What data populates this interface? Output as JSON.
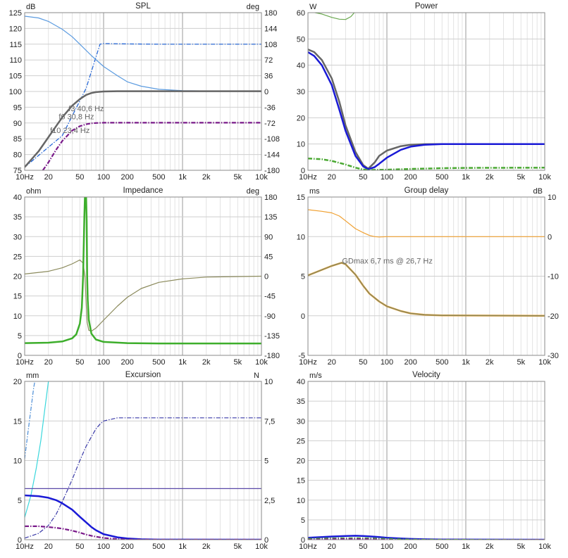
{
  "chart_data": [
    {
      "id": "spl",
      "type": "line",
      "title": "SPL",
      "ylabel": "dB",
      "y2label": "deg",
      "xscale": "log",
      "xlim": [
        10,
        10000
      ],
      "ylim": [
        75,
        125
      ],
      "y2lim": [
        -180,
        180
      ],
      "xticks": [
        10,
        20,
        50,
        100,
        200,
        500,
        1000,
        2000,
        5000,
        10000
      ],
      "xticklabels": [
        "10Hz",
        "20",
        "50",
        "100",
        "200",
        "500",
        "1k",
        "2k",
        "5k",
        "10k"
      ],
      "yticks": [
        75,
        80,
        85,
        90,
        95,
        100,
        105,
        110,
        115,
        120,
        125
      ],
      "y2ticks": [
        -180,
        -144,
        -108,
        -72,
        -36,
        0,
        36,
        72,
        108,
        144,
        180
      ],
      "series": [
        {
          "color": "#1a5fd6",
          "style": "dashdot",
          "axis": "y",
          "x": [
            10,
            30,
            60,
            90,
            100,
            200,
            500,
            1000,
            10000
          ],
          "y": [
            76,
            86,
            101,
            115,
            115.2,
            115.1,
            115,
            115,
            115
          ]
        },
        {
          "color": "#5b9be0",
          "style": "solid",
          "axis": "y2",
          "x": [
            10,
            15,
            20,
            30,
            40,
            50,
            70,
            100,
            150,
            200,
            300,
            500,
            1000,
            10000
          ],
          "y": [
            172,
            168,
            160,
            142,
            125,
            108,
            82,
            57,
            36,
            22,
            12,
            5,
            2,
            0
          ]
        },
        {
          "color": "#666666",
          "style": "solid",
          "width": 2.5,
          "axis": "y",
          "x": [
            10,
            15,
            20,
            25,
            30,
            40,
            50,
            60,
            70,
            80,
            100,
            150,
            200,
            500,
            10000
          ],
          "y": [
            76,
            81,
            85.5,
            89,
            91.8,
            95.5,
            97.6,
            98.9,
            99.5,
            99.8,
            100,
            100.1,
            100.1,
            100.1,
            100.1
          ]
        },
        {
          "color": "#7a1a8a",
          "style": "dashdot",
          "width": 2.2,
          "axis": "y",
          "x": [
            17,
            20,
            25,
            30,
            40,
            50,
            60,
            70,
            80,
            100,
            150,
            200,
            500,
            10000
          ],
          "y": [
            75,
            77.5,
            81.5,
            84.3,
            87.6,
            89,
            89.6,
            89.9,
            90,
            90.1,
            90.1,
            90.1,
            90.1,
            90.1
          ]
        }
      ],
      "annotations": [
        {
          "text": "f3 40,6 Hz",
          "x": 36,
          "y": 93.8
        },
        {
          "text": "f6 30,8 Hz",
          "x": 27,
          "y": 91.2
        },
        {
          "text": "f10 23,4 Hz",
          "x": 21,
          "y": 86.8
        }
      ]
    },
    {
      "id": "power",
      "type": "line",
      "title": "Power",
      "ylabel": "W",
      "xscale": "log",
      "xlim": [
        10,
        10000
      ],
      "ylim": [
        0,
        60
      ],
      "xticks": [
        10,
        20,
        50,
        100,
        200,
        500,
        1000,
        2000,
        5000,
        10000
      ],
      "xticklabels": [
        "10Hz",
        "20",
        "50",
        "100",
        "200",
        "500",
        "1k",
        "2k",
        "5k",
        "10k"
      ],
      "yticks": [
        0,
        10,
        20,
        30,
        40,
        50,
        60
      ],
      "series": [
        {
          "color": "#6aa84f",
          "style": "solid",
          "axis": "y",
          "x": [
            10,
            15,
            20,
            25,
            30,
            35,
            40
          ],
          "y": [
            60.5,
            59.5,
            58.2,
            57.5,
            57.4,
            58.5,
            60.5
          ]
        },
        {
          "color": "#666666",
          "style": "solid",
          "width": 2.5,
          "axis": "y",
          "x": [
            10,
            12,
            15,
            20,
            25,
            30,
            40,
            50,
            58,
            70,
            80,
            100,
            150,
            200,
            300,
            500,
            1000,
            10000
          ],
          "y": [
            46,
            45,
            42,
            35,
            26,
            17,
            7,
            2,
            0.6,
            3,
            5.5,
            7.5,
            9.2,
            9.7,
            9.95,
            10,
            10,
            10
          ]
        },
        {
          "color": "#1a1ad6",
          "style": "solid",
          "width": 2.5,
          "axis": "y",
          "x": [
            10,
            12,
            15,
            20,
            25,
            30,
            40,
            50,
            58,
            70,
            80,
            100,
            150,
            200,
            300,
            500,
            1000,
            10000
          ],
          "y": [
            45,
            43.5,
            40,
            32.5,
            23,
            15,
            5.5,
            1.5,
            0.4,
            1.2,
            2.5,
            4.8,
            7.8,
            9,
            9.7,
            10,
            10,
            10
          ]
        },
        {
          "color": "#4aa832",
          "style": "dashdot",
          "width": 2.5,
          "axis": "y",
          "x": [
            10,
            15,
            20,
            30,
            40,
            50,
            60,
            100,
            200,
            500,
            1000,
            10000
          ],
          "y": [
            4.5,
            4.2,
            3.6,
            2.2,
            1,
            0.3,
            0.1,
            0.25,
            0.5,
            0.8,
            0.9,
            1
          ]
        }
      ]
    },
    {
      "id": "impedance",
      "type": "line",
      "title": "Impedance",
      "ylabel": "ohm",
      "y2label": "deg",
      "xscale": "log",
      "xlim": [
        10,
        10000
      ],
      "ylim": [
        0,
        40
      ],
      "y2lim": [
        -180,
        180
      ],
      "xticks": [
        10,
        20,
        50,
        100,
        200,
        500,
        1000,
        2000,
        5000,
        10000
      ],
      "xticklabels": [
        "10Hz",
        "20",
        "50",
        "100",
        "200",
        "500",
        "1k",
        "2k",
        "5k",
        "10k"
      ],
      "yticks": [
        0,
        5,
        10,
        15,
        20,
        25,
        30,
        35,
        40
      ],
      "y2ticks": [
        -180,
        -135,
        -90,
        -45,
        0,
        45,
        90,
        135,
        180
      ],
      "series": [
        {
          "color": "#8b8a5c",
          "style": "solid",
          "axis": "y2",
          "x": [
            10,
            20,
            30,
            40,
            50,
            55,
            58,
            60,
            62,
            65,
            70,
            80,
            100,
            150,
            200,
            300,
            500,
            1000,
            2000,
            10000
          ],
          "y": [
            5,
            11,
            19,
            28,
            37,
            30,
            0,
            -60,
            -105,
            -123,
            -125,
            -118,
            -100,
            -68,
            -48,
            -28,
            -14,
            -6,
            -2,
            0
          ]
        },
        {
          "color": "#3dae2b",
          "style": "solid",
          "width": 2.5,
          "axis": "y",
          "x": [
            10,
            20,
            30,
            40,
            45,
            50,
            53,
            55,
            57,
            58,
            59,
            60,
            61,
            62,
            63,
            65,
            70,
            80,
            100,
            200,
            500,
            10000
          ],
          "y": [
            3.1,
            3.2,
            3.5,
            4.3,
            5.3,
            8,
            12,
            20,
            35,
            40,
            40,
            40,
            34,
            20,
            14,
            9,
            5.5,
            4,
            3.4,
            3.1,
            3,
            3
          ]
        }
      ]
    },
    {
      "id": "group_delay",
      "type": "line",
      "title": "Group delay",
      "ylabel": "ms",
      "y2label": "dB",
      "xscale": "log",
      "xlim": [
        10,
        10000
      ],
      "ylim": [
        -5,
        15
      ],
      "y2lim": [
        -30,
        10
      ],
      "xticks": [
        10,
        20,
        50,
        100,
        200,
        500,
        1000,
        2000,
        5000,
        10000
      ],
      "xticklabels": [
        "10Hz",
        "20",
        "50",
        "100",
        "200",
        "500",
        "1k",
        "2k",
        "5k",
        "10k"
      ],
      "yticks": [
        -5,
        0,
        5,
        10,
        15
      ],
      "y2ticks": [
        -30,
        -20,
        -10,
        0,
        10
      ],
      "series": [
        {
          "color": "#f0a030",
          "style": "solid",
          "axis": "y",
          "x": [
            10,
            15,
            20,
            25,
            30,
            40,
            50,
            60,
            70,
            80,
            100,
            200,
            10000
          ],
          "y": [
            13.4,
            13.2,
            13,
            12.6,
            12,
            11,
            10.5,
            10.15,
            10,
            9.95,
            10,
            10,
            10
          ]
        },
        {
          "color": "#f0a030",
          "style": "solid",
          "width": 2.5,
          "axis": "y",
          "x": [
            10,
            15,
            20,
            26.7,
            30,
            40,
            50,
            60,
            80,
            100,
            150,
            200,
            300,
            500,
            10000
          ],
          "y": [
            5.1,
            5.8,
            6.3,
            6.7,
            6.5,
            5.2,
            3.8,
            2.8,
            1.8,
            1.2,
            0.6,
            0.3,
            0.12,
            0.05,
            0
          ]
        },
        {
          "color": "#8b8a5c",
          "style": "solid",
          "width": 1.5,
          "axis": "y",
          "x": [
            10,
            15,
            20,
            26.7,
            30,
            40,
            50,
            60,
            80,
            100,
            150,
            200,
            300,
            500,
            10000
          ],
          "y": [
            5.1,
            5.8,
            6.3,
            6.7,
            6.5,
            5.2,
            3.8,
            2.8,
            1.8,
            1.2,
            0.6,
            0.3,
            0.12,
            0.05,
            0
          ]
        }
      ],
      "annotations": [
        {
          "text": "GDmax 6,7 ms  @ 26,7 Hz",
          "x": 27,
          "y": 6.6
        }
      ]
    },
    {
      "id": "excursion",
      "type": "line",
      "title": "Excursion",
      "ylabel": "mm",
      "y2label": "N",
      "xscale": "log",
      "xlim": [
        10,
        10000
      ],
      "ylim": [
        0,
        20
      ],
      "y2lim": [
        0,
        10
      ],
      "xticks": [
        10,
        20,
        50,
        100,
        200,
        500,
        1000,
        2000,
        5000,
        10000
      ],
      "xticklabels": [
        "10Hz",
        "20",
        "50",
        "100",
        "200",
        "500",
        "1k",
        "2k",
        "5k",
        "10k"
      ],
      "yticks": [
        0,
        5,
        10,
        15,
        20
      ],
      "y2ticks": [
        0,
        2.5,
        5,
        7.5,
        10
      ],
      "y2ticklabels": [
        "0",
        "2,5",
        "5",
        "7,5",
        "10"
      ],
      "series": [
        {
          "color": "#4a8cd6",
          "style": "dashdot",
          "axis": "y",
          "x": [
            10,
            11,
            12,
            13,
            14
          ],
          "y": [
            10.2,
            13.5,
            16.5,
            19.2,
            21
          ]
        },
        {
          "color": "#3ad7dc",
          "style": "solid",
          "axis": "y",
          "x": [
            10,
            12,
            14,
            16,
            18,
            20
          ],
          "y": [
            2.8,
            5.6,
            9,
            12.5,
            16.5,
            20
          ]
        },
        {
          "color": "#3a3aa8",
          "style": "dashdot",
          "axis": "y2",
          "x": [
            10,
            15,
            20,
            25,
            30,
            40,
            50,
            60,
            70,
            80,
            90,
            100,
            150,
            200,
            500,
            10000
          ],
          "y": [
            0.1,
            0.4,
            0.9,
            1.6,
            2.4,
            3.8,
            5,
            5.9,
            6.5,
            7,
            7.3,
            7.5,
            7.7,
            7.7,
            7.7,
            7.7
          ]
        },
        {
          "color": "#5a48a8",
          "style": "solid",
          "axis": "y",
          "x": [
            10,
            10000
          ],
          "y": [
            6.45,
            6.45
          ]
        },
        {
          "color": "#1a1ad6",
          "style": "solid",
          "width": 2.5,
          "axis": "y",
          "x": [
            10,
            15,
            20,
            25,
            30,
            40,
            50,
            60,
            70,
            80,
            100,
            150,
            200,
            300,
            500,
            10000
          ],
          "y": [
            5.6,
            5.5,
            5.3,
            5.0,
            4.6,
            3.8,
            2.9,
            2.2,
            1.6,
            1.2,
            0.7,
            0.3,
            0.15,
            0.05,
            0.01,
            0
          ]
        },
        {
          "color": "#7a1a8a",
          "style": "dashdot",
          "width": 2.2,
          "axis": "y",
          "x": [
            10,
            15,
            20,
            25,
            30,
            40,
            50,
            60,
            70,
            80,
            100,
            150,
            200,
            300,
            10000
          ],
          "y": [
            1.7,
            1.7,
            1.6,
            1.5,
            1.4,
            1.15,
            0.9,
            0.65,
            0.5,
            0.38,
            0.22,
            0.08,
            0.03,
            0.01,
            0
          ]
        }
      ]
    },
    {
      "id": "velocity",
      "type": "line",
      "title": "Velocity",
      "ylabel": "m/s",
      "xscale": "log",
      "xlim": [
        10,
        10000
      ],
      "ylim": [
        0,
        40
      ],
      "xticks": [
        10,
        20,
        50,
        100,
        200,
        500,
        1000,
        2000,
        5000,
        10000
      ],
      "xticklabels": [
        "10Hz",
        "20",
        "50",
        "100",
        "200",
        "500",
        "1k",
        "2k",
        "5k",
        "10k"
      ],
      "yticks": [
        0,
        5,
        10,
        15,
        20,
        25,
        30,
        35,
        40
      ],
      "series": [
        {
          "color": "#1a1ad6",
          "style": "solid",
          "width": 2.5,
          "axis": "y",
          "x": [
            10,
            15,
            20,
            30,
            40,
            50,
            60,
            80,
            100,
            150,
            200,
            300,
            500,
            10000
          ],
          "y": [
            0.5,
            0.68,
            0.8,
            0.95,
            1,
            0.95,
            0.85,
            0.65,
            0.5,
            0.3,
            0.2,
            0.1,
            0.05,
            0
          ]
        },
        {
          "color": "#7a1a8a",
          "style": "dashdot",
          "width": 2,
          "axis": "y",
          "x": [
            10,
            15,
            20,
            30,
            40,
            50,
            60,
            80,
            100,
            150,
            200,
            300,
            10000
          ],
          "y": [
            0.1,
            0.15,
            0.2,
            0.25,
            0.25,
            0.22,
            0.2,
            0.15,
            0.1,
            0.05,
            0.03,
            0.01,
            0
          ]
        },
        {
          "color": "#4aa832",
          "style": "dashdot",
          "width": 1.2,
          "axis": "y",
          "x": [
            10,
            20,
            40,
            60,
            100,
            200,
            10000
          ],
          "y": [
            0.3,
            0.45,
            0.5,
            0.45,
            0.3,
            0.1,
            0
          ]
        }
      ]
    }
  ]
}
